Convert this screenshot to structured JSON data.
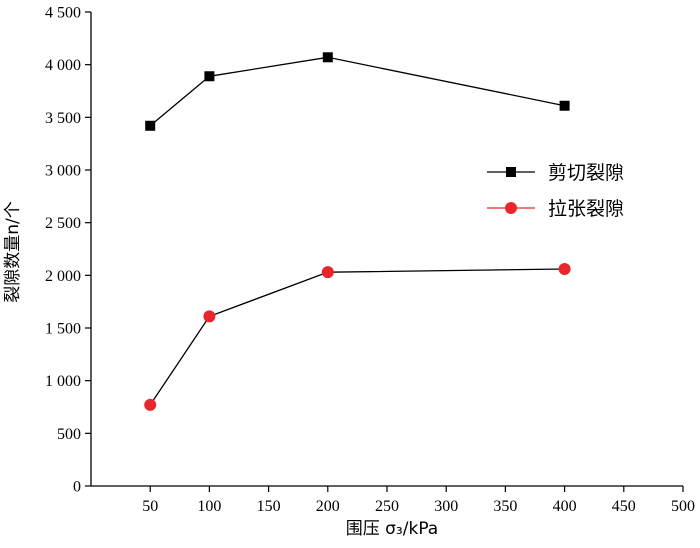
{
  "chart_data": {
    "type": "line",
    "xlabel": "围压 σ₃/kPa",
    "ylabel": "裂隙数量n/个",
    "xlim": [
      0,
      500
    ],
    "ylim": [
      0,
      4500
    ],
    "x_ticks": [
      50,
      100,
      150,
      200,
      250,
      300,
      350,
      400,
      450,
      500
    ],
    "x_tick_labels": [
      "50",
      "100",
      "150",
      "200",
      "250",
      "300",
      "350",
      "400",
      "450",
      "500"
    ],
    "y_ticks": [
      0,
      500,
      1000,
      1500,
      2000,
      2500,
      3000,
      3500,
      4000,
      4500
    ],
    "y_tick_labels": [
      "0",
      "500",
      "1 000",
      "1 500",
      "2 000",
      "2 500",
      "3 000",
      "3 500",
      "4 000",
      "4 500"
    ],
    "grid": false,
    "legend_position": "right",
    "series": [
      {
        "name": "剪切裂隙",
        "marker": "square",
        "color": "#000000",
        "line_color": "#000000",
        "x": [
          50,
          100,
          200,
          400
        ],
        "values": [
          3420,
          3890,
          4070,
          3610
        ]
      },
      {
        "name": "拉张裂隙",
        "marker": "circle",
        "color": "#e8262b",
        "line_color": "#000000",
        "x": [
          50,
          100,
          200,
          400
        ],
        "values": [
          770,
          1610,
          2030,
          2060
        ]
      }
    ]
  }
}
